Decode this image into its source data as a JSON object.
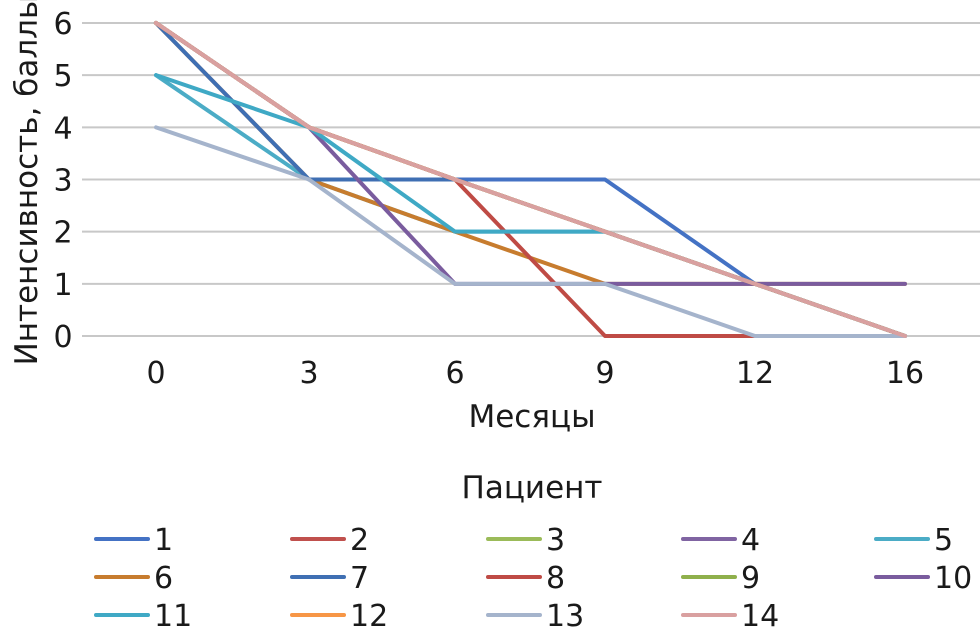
{
  "chart_data": {
    "type": "line",
    "x": [
      "0",
      "3",
      "6",
      "9",
      "12",
      "16"
    ],
    "ylim": [
      0,
      6
    ],
    "yticks": [
      0,
      1,
      2,
      3,
      4,
      5,
      6
    ],
    "xlabel": "Месяцы",
    "ylabel": "Интенсивность, баллы",
    "grid": "horizontal",
    "legend": {
      "title": "Пациент",
      "placement": "bottom",
      "columns": 5
    },
    "series": [
      {
        "name": "1",
        "color": "#4472c4",
        "values": [
          6,
          4,
          3,
          3,
          1,
          0
        ]
      },
      {
        "name": "2",
        "color": "#c0504d",
        "values": [
          6,
          4,
          3,
          2,
          1,
          0
        ]
      },
      {
        "name": "3",
        "color": "#9bbb59",
        "values": [
          6,
          4,
          3,
          2,
          1,
          0
        ]
      },
      {
        "name": "4",
        "color": "#8064a2",
        "values": [
          6,
          4,
          3,
          2,
          1,
          0
        ]
      },
      {
        "name": "5",
        "color": "#4bacc6",
        "values": [
          5,
          3,
          2,
          2,
          1,
          0
        ]
      },
      {
        "name": "6",
        "color": "#c77c2e",
        "values": [
          6,
          3,
          2,
          1,
          1,
          1
        ]
      },
      {
        "name": "7",
        "color": "#3f6fb3",
        "values": [
          6,
          3,
          3,
          2,
          1,
          0
        ]
      },
      {
        "name": "8",
        "color": "#bf4b45",
        "values": [
          6,
          4,
          3,
          0,
          0,
          0
        ]
      },
      {
        "name": "9",
        "color": "#8fb04c",
        "values": [
          6,
          4,
          3,
          2,
          1,
          0
        ]
      },
      {
        "name": "10",
        "color": "#7a5c9e",
        "values": [
          6,
          4,
          1,
          1,
          1,
          1
        ]
      },
      {
        "name": "11",
        "color": "#3fa9c5",
        "values": [
          5,
          4,
          2,
          2,
          1,
          0
        ]
      },
      {
        "name": "12",
        "color": "#f79646",
        "values": [
          6,
          4,
          3,
          2,
          1,
          0
        ]
      },
      {
        "name": "13",
        "color": "#a5b4cc",
        "values": [
          4,
          3,
          1,
          1,
          0,
          0
        ]
      },
      {
        "name": "14",
        "color": "#d9a0a0",
        "values": [
          6,
          4,
          3,
          2,
          1,
          0
        ]
      }
    ]
  }
}
